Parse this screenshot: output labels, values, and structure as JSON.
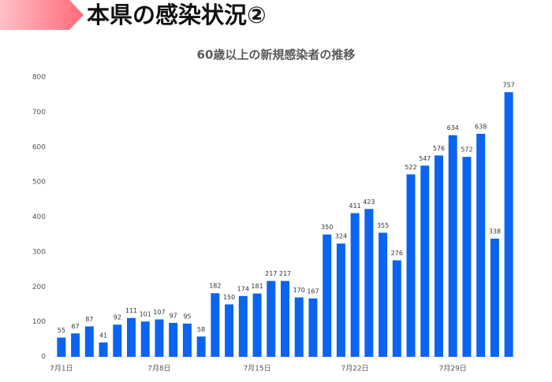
{
  "header": {
    "title": "本県の感染状況②"
  },
  "chart_data": {
    "type": "bar",
    "title": "60歳以上の新規感染者の推移",
    "categories": [
      "7月1日",
      null,
      null,
      null,
      null,
      null,
      null,
      "7月8日",
      null,
      null,
      null,
      null,
      null,
      null,
      "7月15日",
      null,
      null,
      null,
      null,
      null,
      null,
      "7月22日",
      null,
      null,
      null,
      null,
      null,
      null,
      "7月29日",
      null,
      null,
      null,
      null
    ],
    "values": [
      55,
      67,
      87,
      41,
      92,
      111,
      101,
      107,
      97,
      95,
      58,
      182,
      150,
      174,
      181,
      217,
      217,
      170,
      167,
      350,
      324,
      411,
      423,
      355,
      276,
      522,
      547,
      576,
      634,
      572,
      638,
      338,
      757
    ],
    "color": "#0a64f0",
    "ylim": [
      0,
      800
    ],
    "yticks": [
      0,
      100,
      200,
      300,
      400,
      500,
      600,
      700,
      800
    ],
    "grid": false
  }
}
